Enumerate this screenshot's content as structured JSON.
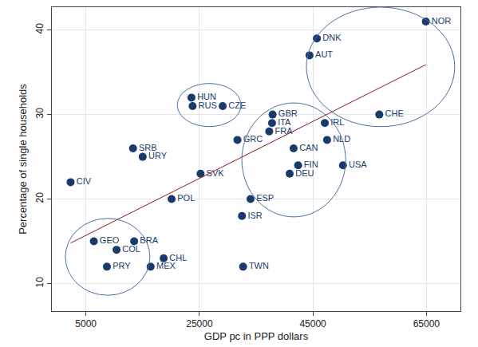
{
  "chart_data": {
    "type": "scatter",
    "x_label": "GDP pc in PPP dollars",
    "y_label": "Percentage of single households",
    "xlim": [
      -1000,
      71000
    ],
    "xticks": [
      5000,
      25000,
      45000,
      65000
    ],
    "ylim": [
      6.75,
      42.7
    ],
    "yticks": [
      10,
      20,
      30,
      40
    ],
    "grid": true,
    "series": [
      {
        "type": "scatter",
        "marker": "circle",
        "color": "#1a3a6b",
        "labels": [
          "CIV",
          "GEO",
          "COL",
          "PRY",
          "BRA",
          "MEX",
          "CHL",
          "SRB",
          "URY",
          "POL",
          "SVK",
          "HUN",
          "RUS",
          "CZE",
          "GRC",
          "ISR",
          "TWN",
          "ESP",
          "GBR",
          "ITA",
          "FRA",
          "CAN",
          "DEU",
          "FIN",
          "IRL",
          "NLD",
          "USA",
          "DNK",
          "AUT",
          "CHE",
          "NOR"
        ],
        "x": [
          2300,
          6400,
          10400,
          8700,
          13500,
          16400,
          18700,
          13300,
          15000,
          20100,
          25200,
          23600,
          23800,
          29100,
          31700,
          32500,
          32700,
          34000,
          37900,
          37800,
          37300,
          41600,
          40900,
          42400,
          47100,
          47500,
          50300,
          45700,
          44400,
          56700,
          64900
        ],
        "values": [
          22,
          15,
          14,
          12,
          15,
          12,
          13,
          26,
          25,
          20,
          23,
          32,
          31,
          31,
          27,
          18,
          12,
          20,
          30,
          29,
          28,
          26,
          23,
          24,
          29,
          27,
          24,
          39,
          37,
          30,
          41
        ]
      },
      {
        "type": "line",
        "line_style": "solid",
        "color": "#8b1a1a",
        "x": [
          2300,
          64900
        ],
        "values": [
          14.8,
          35.9
        ]
      }
    ]
  }
}
